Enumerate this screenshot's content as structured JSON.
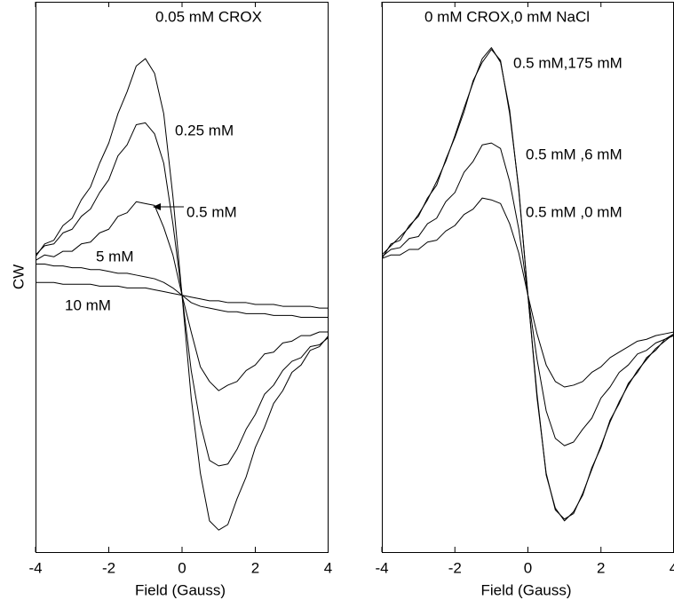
{
  "chart_data": [
    {
      "type": "line",
      "xlabel": "Field (Gauss)",
      "ylabel": "CW",
      "xlim": [
        -4,
        4
      ],
      "ylim": [
        -1.4,
        1.6
      ],
      "xticks": [
        -4,
        -2,
        0,
        2,
        4
      ],
      "x": [
        -4,
        -3.75,
        -3.5,
        -3.25,
        -3,
        -2.75,
        -2.5,
        -2.25,
        -2,
        -1.75,
        -1.5,
        -1.25,
        -1,
        -0.75,
        -0.5,
        -0.25,
        0,
        0.25,
        0.5,
        0.75,
        1,
        1.25,
        1.5,
        1.75,
        2,
        2.25,
        2.5,
        2.75,
        3,
        3.25,
        3.5,
        3.75,
        4
      ],
      "series": [
        {
          "name": "0.05 mM CROX",
          "color": "#000000",
          "values": [
            0.21,
            0.28,
            0.3,
            0.38,
            0.42,
            0.52,
            0.59,
            0.72,
            0.83,
            0.99,
            1.11,
            1.25,
            1.29,
            1.21,
            0.99,
            0.54,
            0,
            -0.56,
            -0.97,
            -1.23,
            -1.28,
            -1.25,
            -1.11,
            -0.99,
            -0.83,
            -0.72,
            -0.59,
            -0.52,
            -0.42,
            -0.38,
            -0.3,
            -0.28,
            -0.22
          ]
        },
        {
          "name": "0.25 mM",
          "color": "#000000",
          "values": [
            0.22,
            0.27,
            0.28,
            0.34,
            0.36,
            0.43,
            0.47,
            0.56,
            0.63,
            0.76,
            0.82,
            0.93,
            0.94,
            0.88,
            0.72,
            0.39,
            0,
            -0.41,
            -0.7,
            -0.9,
            -0.93,
            -0.92,
            -0.84,
            -0.73,
            -0.65,
            -0.54,
            -0.49,
            -0.41,
            -0.36,
            -0.34,
            -0.28,
            -0.27,
            -0.23
          ]
        },
        {
          "name": "0.5 mM",
          "color": "#000000",
          "values": [
            0.19,
            0.22,
            0.21,
            0.24,
            0.24,
            0.28,
            0.29,
            0.34,
            0.36,
            0.43,
            0.45,
            0.51,
            0.5,
            0.49,
            0.37,
            0.22,
            0,
            -0.2,
            -0.39,
            -0.47,
            -0.52,
            -0.49,
            -0.47,
            -0.41,
            -0.38,
            -0.32,
            -0.31,
            -0.26,
            -0.25,
            -0.22,
            -0.22,
            -0.2,
            -0.2
          ]
        },
        {
          "name": "5 mM",
          "color": "#000000",
          "values": [
            0.17,
            0.17,
            0.16,
            0.16,
            0.15,
            0.15,
            0.14,
            0.14,
            0.13,
            0.12,
            0.12,
            0.11,
            0.1,
            0.09,
            0.07,
            0.04,
            0,
            -0.04,
            -0.06,
            -0.07,
            -0.08,
            -0.09,
            -0.09,
            -0.1,
            -0.1,
            -0.1,
            -0.11,
            -0.11,
            -0.11,
            -0.12,
            -0.12,
            -0.12,
            -0.12
          ]
        },
        {
          "name": "10 mM",
          "color": "#000000",
          "values": [
            0.07,
            0.07,
            0.07,
            0.06,
            0.06,
            0.06,
            0.06,
            0.05,
            0.05,
            0.05,
            0.04,
            0.04,
            0.04,
            0.03,
            0.02,
            0.01,
            0,
            -0.01,
            -0.02,
            -0.03,
            -0.03,
            -0.04,
            -0.04,
            -0.04,
            -0.05,
            -0.05,
            -0.05,
            -0.06,
            -0.06,
            -0.06,
            -0.06,
            -0.07,
            -0.07
          ]
        }
      ]
    },
    {
      "type": "line",
      "xlabel": "Field (Gauss)",
      "xlim": [
        -4,
        4
      ],
      "ylim": [
        -1.4,
        1.6
      ],
      "xticks": [
        -4,
        -2,
        0,
        2,
        4
      ],
      "x": [
        -4,
        -3.75,
        -3.5,
        -3.25,
        -3,
        -2.75,
        -2.5,
        -2.25,
        -2,
        -1.75,
        -1.5,
        -1.25,
        -1,
        -0.75,
        -0.5,
        -0.25,
        0,
        0.25,
        0.5,
        0.75,
        1,
        1.25,
        1.5,
        1.75,
        2,
        2.25,
        2.5,
        2.75,
        3,
        3.25,
        3.5,
        3.75,
        4
      ],
      "series": [
        {
          "name": "0 mM CROX,0 mM NaCl",
          "color": "#000000",
          "values": [
            0.22,
            0.27,
            0.32,
            0.37,
            0.44,
            0.52,
            0.62,
            0.73,
            0.87,
            1.02,
            1.16,
            1.29,
            1.35,
            1.27,
            1.01,
            0.57,
            0,
            -0.56,
            -0.97,
            -1.17,
            -1.22,
            -1.19,
            -1.08,
            -0.95,
            -0.82,
            -0.69,
            -0.58,
            -0.49,
            -0.41,
            -0.35,
            -0.29,
            -0.25,
            -0.21
          ]
        },
        {
          "name": "0.5 mM,175 mM",
          "color": "#000000",
          "values": [
            0.2,
            0.28,
            0.3,
            0.38,
            0.43,
            0.53,
            0.6,
            0.74,
            0.86,
            1.0,
            1.17,
            1.27,
            1.34,
            1.28,
            0.99,
            0.58,
            0,
            -0.54,
            -0.98,
            -1.16,
            -1.23,
            -1.18,
            -1.09,
            -0.94,
            -0.83,
            -0.68,
            -0.59,
            -0.48,
            -0.42,
            -0.34,
            -0.3,
            -0.24,
            -0.22
          ]
        },
        {
          "name": "0.5 mM ,6 mM",
          "color": "#000000",
          "values": [
            0.21,
            0.25,
            0.26,
            0.31,
            0.32,
            0.39,
            0.42,
            0.51,
            0.56,
            0.67,
            0.73,
            0.82,
            0.83,
            0.8,
            0.62,
            0.36,
            0,
            -0.35,
            -0.63,
            -0.78,
            -0.82,
            -0.8,
            -0.73,
            -0.67,
            -0.56,
            -0.5,
            -0.42,
            -0.38,
            -0.32,
            -0.3,
            -0.26,
            -0.24,
            -0.21
          ]
        },
        {
          "name": "0.5 mM ,0 mM",
          "color": "#000000",
          "values": [
            0.2,
            0.22,
            0.22,
            0.25,
            0.25,
            0.29,
            0.3,
            0.35,
            0.38,
            0.44,
            0.47,
            0.53,
            0.52,
            0.5,
            0.39,
            0.23,
            0,
            -0.21,
            -0.38,
            -0.47,
            -0.5,
            -0.49,
            -0.47,
            -0.42,
            -0.39,
            -0.34,
            -0.31,
            -0.28,
            -0.25,
            -0.24,
            -0.22,
            -0.21,
            -0.2
          ]
        }
      ]
    }
  ]
}
